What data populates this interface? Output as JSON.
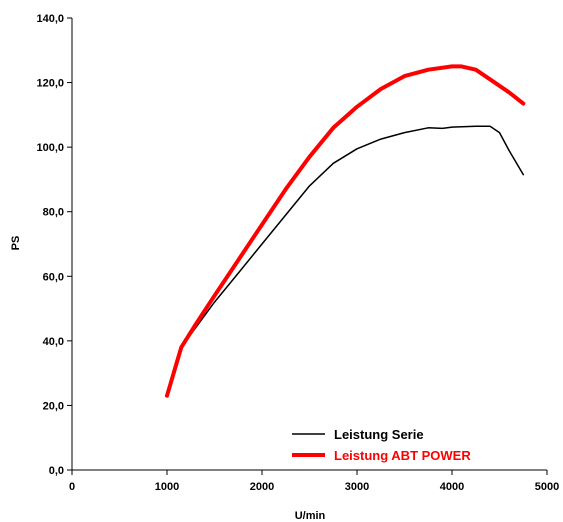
{
  "chart_data": {
    "type": "line",
    "xlabel": "U/min",
    "ylabel": "PS",
    "xlim": [
      0,
      5000
    ],
    "ylim": [
      0,
      140
    ],
    "x_ticks": [
      "0",
      "1000",
      "2000",
      "3000",
      "4000",
      "5000"
    ],
    "y_ticks": [
      "0,0",
      "20,0",
      "40,0",
      "60,0",
      "80,0",
      "100,0",
      "120,0",
      "140,0"
    ],
    "grid": false,
    "legend_position": "bottom-right",
    "series": [
      {
        "name": "Leistung Serie",
        "color": "#000000",
        "points": [
          [
            1000,
            23
          ],
          [
            1100,
            33
          ],
          [
            1150,
            38
          ],
          [
            1300,
            44
          ],
          [
            1500,
            52
          ],
          [
            1750,
            61
          ],
          [
            2000,
            70
          ],
          [
            2250,
            79
          ],
          [
            2500,
            88
          ],
          [
            2750,
            95
          ],
          [
            3000,
            99.5
          ],
          [
            3250,
            102.5
          ],
          [
            3500,
            104.5
          ],
          [
            3750,
            106
          ],
          [
            3900,
            105.8
          ],
          [
            4000,
            106.2
          ],
          [
            4250,
            106.5
          ],
          [
            4400,
            106.5
          ],
          [
            4500,
            104.5
          ],
          [
            4600,
            99
          ],
          [
            4750,
            91.5
          ]
        ]
      },
      {
        "name": "Leistung ABT POWER",
        "color": "#ff0000",
        "points": [
          [
            1000,
            23
          ],
          [
            1100,
            33
          ],
          [
            1150,
            38
          ],
          [
            1300,
            45
          ],
          [
            1500,
            54
          ],
          [
            1750,
            65
          ],
          [
            2000,
            76
          ],
          [
            2250,
            87
          ],
          [
            2500,
            97
          ],
          [
            2750,
            106
          ],
          [
            3000,
            112.5
          ],
          [
            3250,
            118
          ],
          [
            3500,
            122
          ],
          [
            3750,
            124
          ],
          [
            4000,
            125
          ],
          [
            4100,
            125
          ],
          [
            4250,
            124
          ],
          [
            4400,
            121
          ],
          [
            4600,
            117
          ],
          [
            4750,
            113.5
          ]
        ]
      }
    ]
  }
}
